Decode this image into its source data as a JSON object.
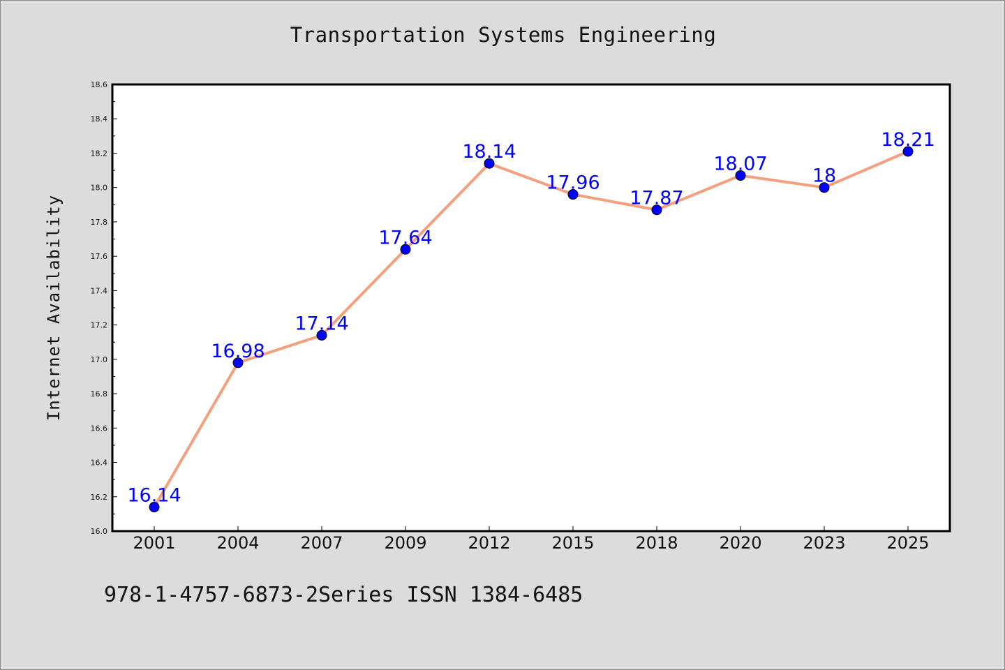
{
  "title": "Transportation Systems Engineering",
  "footer": "978-1-4757-6873-2Series ISSN 1384-6485",
  "colors": {
    "background": "#dcdcdc",
    "plot_background": "#ffffff",
    "line": "#f4a07e",
    "marker": "#0000ff",
    "data_label": "#0000ff"
  },
  "chart_data": {
    "type": "line",
    "title": "Transportation Systems Engineering",
    "xlabel": "",
    "ylabel": "Internet Availability",
    "categories": [
      "2001",
      "2004",
      "2007",
      "2009",
      "2012",
      "2015",
      "2018",
      "2020",
      "2023",
      "2025"
    ],
    "series": [
      {
        "values": [
          16.14,
          16.98,
          17.14,
          17.64,
          18.14,
          17.96,
          17.87,
          18.07,
          18,
          18.21
        ],
        "labels": [
          "16.14",
          "16.98",
          "17.14",
          "17.64",
          "18.14",
          "17.96",
          "17.87",
          "18.07",
          "18",
          "18.21"
        ]
      }
    ],
    "ylim": [
      16.0,
      18.6
    ],
    "yticks": [
      "16.0",
      "16.2",
      "16.4",
      "16.6",
      "16.8",
      "17.0",
      "17.2",
      "17.4",
      "17.6",
      "17.8",
      "18.0",
      "18.2",
      "18.4",
      "18.6"
    ],
    "grid": false,
    "legend": "none"
  }
}
